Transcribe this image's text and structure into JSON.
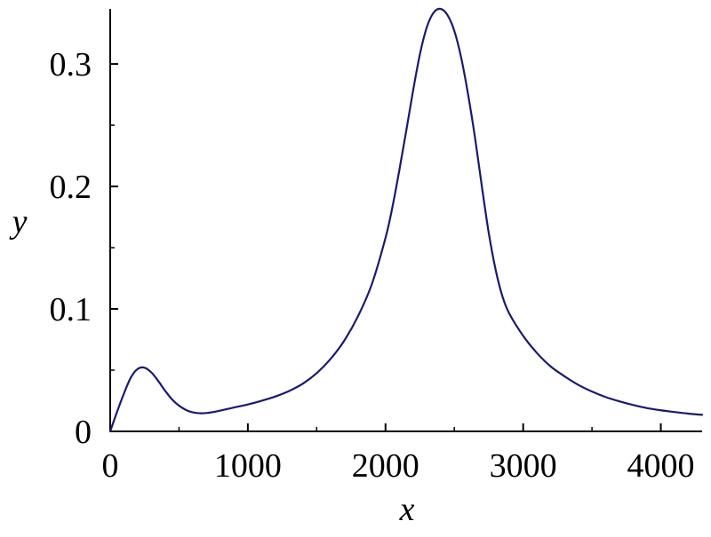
{
  "chart_data": {
    "type": "line",
    "title": "",
    "xlabel": "x",
    "ylabel": "y",
    "xlim": [
      0,
      4300
    ],
    "ylim": [
      0,
      0.345
    ],
    "grid": false,
    "legend": "none",
    "x_ticks": [
      0,
      1000,
      2000,
      3000,
      4000
    ],
    "x_tick_labels": [
      "0",
      "1000",
      "2000",
      "3000",
      "4000"
    ],
    "x_minor_ticks": [
      500,
      1500,
      2500,
      3500
    ],
    "y_ticks": [
      0,
      0.1,
      0.2,
      0.3
    ],
    "y_tick_labels": [
      "0",
      "0.1",
      "0.2",
      "0.3"
    ],
    "y_minor_ticks": [
      0.05,
      0.15,
      0.25
    ],
    "series": [
      {
        "color": "#1a1a6e",
        "x": [
          0,
          50,
          100,
          150,
          200,
          250,
          300,
          350,
          400,
          450,
          500,
          550,
          600,
          650,
          700,
          750,
          800,
          900,
          1000,
          1100,
          1200,
          1300,
          1400,
          1500,
          1600,
          1700,
          1800,
          1900,
          2000,
          2050,
          2100,
          2150,
          2200,
          2250,
          2300,
          2350,
          2400,
          2450,
          2500,
          2550,
          2600,
          2650,
          2700,
          2750,
          2800,
          2850,
          2900,
          3000,
          3100,
          3200,
          3300,
          3400,
          3500,
          3600,
          3700,
          3800,
          3900,
          4000,
          4100,
          4200,
          4300
        ],
        "y": [
          0,
          0.016,
          0.031,
          0.044,
          0.051,
          0.052,
          0.048,
          0.041,
          0.033,
          0.026,
          0.021,
          0.0175,
          0.0155,
          0.0148,
          0.015,
          0.0158,
          0.017,
          0.0195,
          0.022,
          0.025,
          0.0285,
          0.033,
          0.039,
          0.0475,
          0.059,
          0.074,
          0.094,
          0.12,
          0.158,
          0.183,
          0.213,
          0.245,
          0.278,
          0.308,
          0.33,
          0.342,
          0.345,
          0.34,
          0.327,
          0.305,
          0.275,
          0.24,
          0.2,
          0.162,
          0.132,
          0.11,
          0.096,
          0.078,
          0.064,
          0.053,
          0.045,
          0.038,
          0.0325,
          0.028,
          0.0245,
          0.0215,
          0.019,
          0.0172,
          0.0158,
          0.0145,
          0.0135
        ]
      }
    ]
  }
}
